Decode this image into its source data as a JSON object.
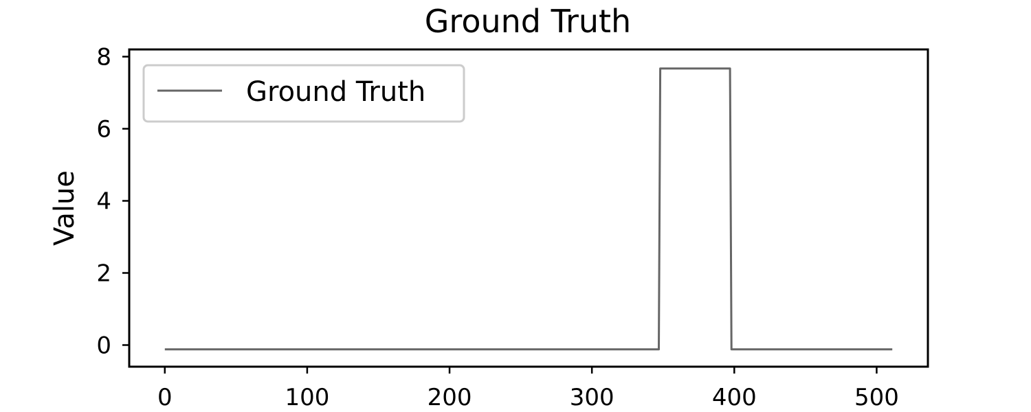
{
  "chart_data": {
    "type": "line",
    "title": "Ground Truth",
    "xlabel": "",
    "ylabel": "Value",
    "xlim": [
      -25,
      536
    ],
    "ylim": [
      -0.6,
      8.2
    ],
    "x_ticks": [
      0,
      100,
      200,
      300,
      400,
      500
    ],
    "y_ticks": [
      0,
      2,
      4,
      6,
      8
    ],
    "grid": false,
    "legend_position": "upper left",
    "series": [
      {
        "name": "Ground Truth",
        "color": "#666666",
        "x": [
          0,
          347,
          348,
          397,
          398,
          511
        ],
        "y": [
          -0.12,
          -0.12,
          7.67,
          7.67,
          -0.12,
          -0.12
        ]
      }
    ]
  }
}
